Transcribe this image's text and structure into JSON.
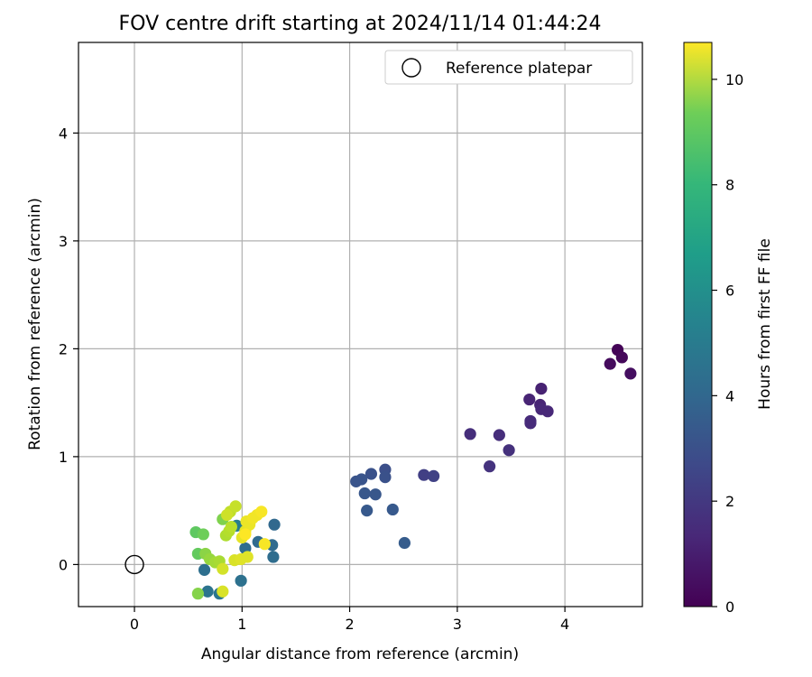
{
  "chart_data": {
    "type": "scatter",
    "title": "FOV centre drift starting at 2024/11/14 01:44:24",
    "xlabel": "Angular distance from reference (arcmin)",
    "ylabel": "Rotation from reference (arcmin)",
    "xlim": [
      -0.52,
      4.72
    ],
    "ylim": [
      -0.39,
      4.84
    ],
    "xticks": [
      0,
      1,
      2,
      3,
      4
    ],
    "yticks": [
      0,
      1,
      2,
      3,
      4
    ],
    "grid": true,
    "legend": {
      "position": "top-right",
      "entries": [
        {
          "label": "Reference platepar",
          "marker": "open-circle"
        }
      ]
    },
    "reference_point": {
      "x": 0,
      "y": 0
    },
    "colorbar": {
      "label": "Hours from first FF file",
      "colormap": "viridis",
      "min": 0,
      "max": 10.7,
      "ticks": [
        0,
        2,
        4,
        6,
        8,
        10
      ]
    },
    "points": [
      {
        "x": 4.49,
        "y": 1.99,
        "c": 0.1
      },
      {
        "x": 4.53,
        "y": 1.92,
        "c": 0.2
      },
      {
        "x": 4.42,
        "y": 1.86,
        "c": 0.3
      },
      {
        "x": 4.61,
        "y": 1.77,
        "c": 0.4
      },
      {
        "x": 3.78,
        "y": 1.63,
        "c": 1.0
      },
      {
        "x": 3.67,
        "y": 1.53,
        "c": 1.1
      },
      {
        "x": 3.77,
        "y": 1.48,
        "c": 1.1
      },
      {
        "x": 3.78,
        "y": 1.44,
        "c": 1.2
      },
      {
        "x": 3.84,
        "y": 1.42,
        "c": 1.2
      },
      {
        "x": 3.68,
        "y": 1.33,
        "c": 1.3
      },
      {
        "x": 3.68,
        "y": 1.31,
        "c": 1.3
      },
      {
        "x": 3.12,
        "y": 1.21,
        "c": 1.4
      },
      {
        "x": 3.39,
        "y": 1.2,
        "c": 1.4
      },
      {
        "x": 3.48,
        "y": 1.06,
        "c": 1.5
      },
      {
        "x": 3.3,
        "y": 0.91,
        "c": 1.6
      },
      {
        "x": 2.69,
        "y": 0.83,
        "c": 2.0
      },
      {
        "x": 2.78,
        "y": 0.82,
        "c": 2.1
      },
      {
        "x": 2.33,
        "y": 0.88,
        "c": 2.6
      },
      {
        "x": 2.2,
        "y": 0.84,
        "c": 2.7
      },
      {
        "x": 2.33,
        "y": 0.81,
        "c": 2.7
      },
      {
        "x": 2.11,
        "y": 0.79,
        "c": 2.8
      },
      {
        "x": 2.06,
        "y": 0.77,
        "c": 2.8
      },
      {
        "x": 2.14,
        "y": 0.66,
        "c": 2.9
      },
      {
        "x": 2.24,
        "y": 0.65,
        "c": 2.9
      },
      {
        "x": 2.16,
        "y": 0.5,
        "c": 3.0
      },
      {
        "x": 2.4,
        "y": 0.51,
        "c": 3.0
      },
      {
        "x": 2.51,
        "y": 0.2,
        "c": 3.1
      },
      {
        "x": 1.3,
        "y": 0.37,
        "c": 3.6
      },
      {
        "x": 1.15,
        "y": 0.21,
        "c": 3.7
      },
      {
        "x": 1.28,
        "y": 0.18,
        "c": 3.7
      },
      {
        "x": 1.03,
        "y": 0.15,
        "c": 3.8
      },
      {
        "x": 1.29,
        "y": 0.07,
        "c": 3.8
      },
      {
        "x": 0.65,
        "y": -0.05,
        "c": 3.9
      },
      {
        "x": 0.99,
        "y": -0.15,
        "c": 4.0
      },
      {
        "x": 0.68,
        "y": -0.25,
        "c": 4.1
      },
      {
        "x": 0.79,
        "y": -0.27,
        "c": 4.2
      },
      {
        "x": 0.95,
        "y": 0.36,
        "c": 4.5
      },
      {
        "x": 0.57,
        "y": 0.3,
        "c": 8.0
      },
      {
        "x": 0.64,
        "y": 0.28,
        "c": 8.3
      },
      {
        "x": 0.59,
        "y": 0.1,
        "c": 8.1
      },
      {
        "x": 0.59,
        "y": -0.27,
        "c": 8.7
      },
      {
        "x": 0.82,
        "y": 0.42,
        "c": 8.6
      },
      {
        "x": 0.66,
        "y": 0.1,
        "c": 8.8
      },
      {
        "x": 0.7,
        "y": 0.05,
        "c": 9.0
      },
      {
        "x": 0.75,
        "y": 0.02,
        "c": 9.2
      },
      {
        "x": 0.79,
        "y": 0.03,
        "c": 9.3
      },
      {
        "x": 0.85,
        "y": 0.27,
        "c": 9.4
      },
      {
        "x": 0.88,
        "y": 0.31,
        "c": 9.5
      },
      {
        "x": 0.9,
        "y": 0.35,
        "c": 9.6
      },
      {
        "x": 0.89,
        "y": 0.49,
        "c": 9.7
      },
      {
        "x": 0.94,
        "y": 0.54,
        "c": 9.8
      },
      {
        "x": 0.86,
        "y": 0.46,
        "c": 9.9
      },
      {
        "x": 0.82,
        "y": -0.04,
        "c": 10.0
      },
      {
        "x": 0.82,
        "y": -0.25,
        "c": 10.1
      },
      {
        "x": 0.93,
        "y": 0.04,
        "c": 10.1
      },
      {
        "x": 0.99,
        "y": 0.05,
        "c": 10.2
      },
      {
        "x": 1.05,
        "y": 0.07,
        "c": 10.2
      },
      {
        "x": 1.0,
        "y": 0.25,
        "c": 10.3
      },
      {
        "x": 1.03,
        "y": 0.31,
        "c": 10.3
      },
      {
        "x": 1.07,
        "y": 0.37,
        "c": 10.4
      },
      {
        "x": 1.04,
        "y": 0.4,
        "c": 10.4
      },
      {
        "x": 1.1,
        "y": 0.43,
        "c": 10.5
      },
      {
        "x": 1.14,
        "y": 0.46,
        "c": 10.5
      },
      {
        "x": 1.18,
        "y": 0.49,
        "c": 10.6
      },
      {
        "x": 1.21,
        "y": 0.19,
        "c": 10.6
      },
      {
        "x": 1.03,
        "y": 0.28,
        "c": 10.7
      }
    ]
  }
}
